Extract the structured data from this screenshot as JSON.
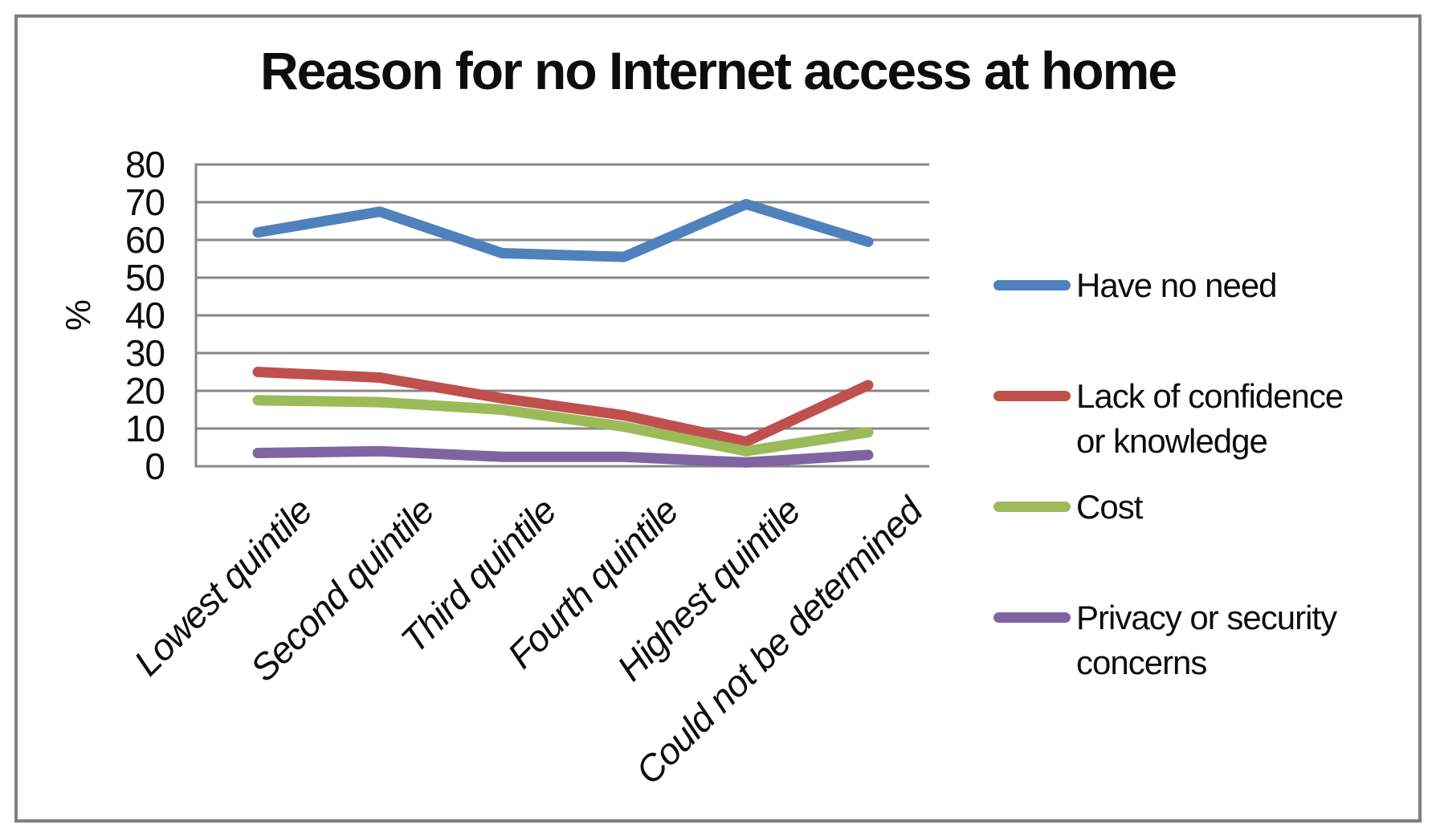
{
  "chart_data": {
    "type": "line",
    "title": "Reason for no Internet access at home",
    "ylabel": "%",
    "xlabel": "",
    "ylim": [
      0,
      80
    ],
    "ytick_step": 10,
    "grid": true,
    "legend_position": "right",
    "axis_color": "#878787",
    "categories": [
      "Lowest quintile",
      "Second quintile",
      "Third quintile",
      "Fourth quintile",
      "Highest quintile",
      "Could not be determined"
    ],
    "series": [
      {
        "name": "Have no need",
        "color": "#4F81BD",
        "values": [
          62,
          67.5,
          56.5,
          55.5,
          69.5,
          59.5
        ]
      },
      {
        "name": "Lack of confidence or knowledge",
        "color": "#C0504D",
        "values": [
          25,
          23.5,
          18,
          13.5,
          6.5,
          21.5
        ]
      },
      {
        "name": "Cost",
        "color": "#9BBB59",
        "values": [
          17.5,
          17,
          15,
          10.5,
          4,
          9
        ]
      },
      {
        "name": "Privacy or security concerns",
        "color": "#8064A2",
        "values": [
          3.5,
          4,
          2.5,
          2.5,
          1,
          3
        ]
      }
    ]
  }
}
